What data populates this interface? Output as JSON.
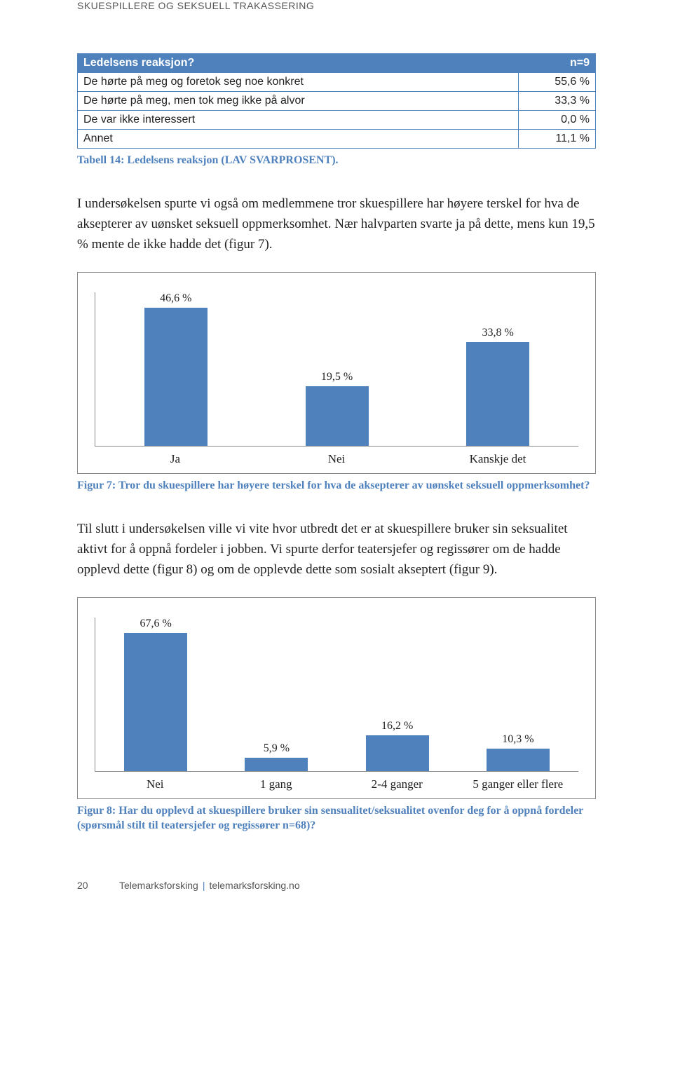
{
  "running_head": "SKUESPILLERE OG SEKSUELL TRAKASSERING",
  "table14": {
    "header_left": "Ledelsens reaksjon?",
    "header_right": "n=9",
    "rows": [
      {
        "label": "De hørte på meg og foretok seg noe konkret",
        "value": "55,6 %"
      },
      {
        "label": "De hørte på meg, men tok meg ikke på alvor",
        "value": "33,3 %"
      },
      {
        "label": "De var ikke interessert",
        "value": "0,0 %"
      },
      {
        "label": "Annet",
        "value": "11,1 %"
      }
    ],
    "caption": "Tabell 14: Ledelsens reaksjon (LAV SVARPROSENT)."
  },
  "para1": "I undersøkelsen spurte vi også om medlemmene tror skuespillere har høyere terskel for hva de aksepterer av uønsket seksuell oppmerksomhet. Nær halvparten svarte ja på dette, mens kun 19,5 % mente de ikke hadde det (figur 7).",
  "chart7": {
    "type": "bar",
    "bar_color": "#4f81bd",
    "border_color": "#888888",
    "max": 50,
    "categories": [
      "Ja",
      "Nei",
      "Kanskje det"
    ],
    "values": [
      46.6,
      19.5,
      33.8
    ],
    "labels": [
      "46,6 %",
      "19,5 %",
      "33,8 %"
    ],
    "caption": "Figur 7: Tror du skuespillere har høyere terskel for hva de aksepterer av uønsket seksuell oppmerksomhet?"
  },
  "para2": "Til slutt i undersøkelsen ville vi vite hvor utbredt det er at skuespillere bruker sin seksualitet aktivt for å oppnå fordeler i jobben. Vi spurte derfor teatersjefer og regissører om de hadde opplevd dette (figur 8) og om de opplevde dette som sosialt akseptert (figur 9).",
  "chart8": {
    "type": "bar",
    "bar_color": "#4f81bd",
    "border_color": "#888888",
    "max": 70,
    "categories": [
      "Nei",
      "1 gang",
      "2-4 ganger",
      "5 ganger eller flere"
    ],
    "values": [
      67.6,
      5.9,
      16.2,
      10.3
    ],
    "labels": [
      "67,6 %",
      "5,9 %",
      "16,2 %",
      "10,3 %"
    ],
    "caption": "Figur 8: Har du opplevd at skuespillere bruker sin sensualitet/seksualitet ovenfor deg for å oppnå fordeler (spørsmål stilt til teatersjefer og regissører n=68)?"
  },
  "footer": {
    "pagenum": "20",
    "org": "Telemarksforsking",
    "url": "telemarksforsking.no"
  }
}
